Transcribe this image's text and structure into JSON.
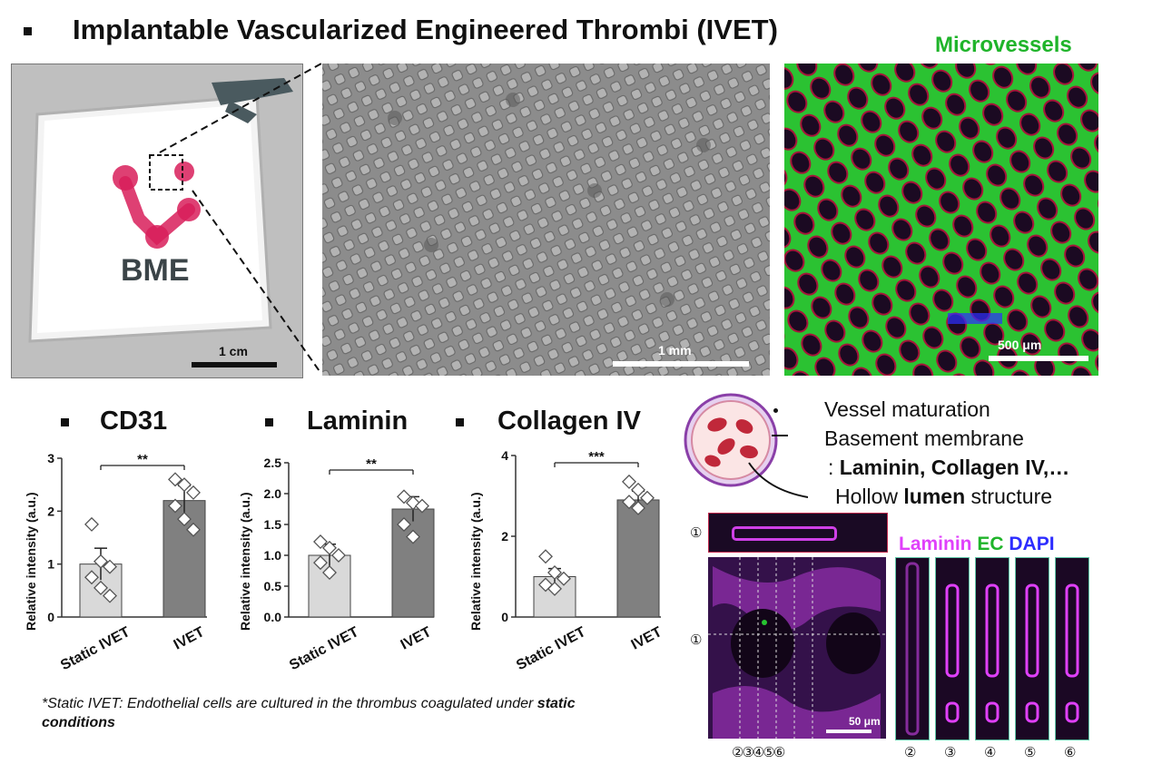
{
  "header": {
    "title": "Implantable Vascularized Engineered Thrombi (IVET)"
  },
  "photo_panel": {
    "logo_text": "BME",
    "scale_label": "1 cm"
  },
  "gray_panel": {
    "scale_label": "1 mm"
  },
  "green_panel": {
    "heading": "Microvessels",
    "scale_label": "500 μm"
  },
  "colors": {
    "bar_static": "#d9d9d9",
    "bar_ivet": "#808080",
    "green": "#27c431",
    "magenta": "#e040fb",
    "blue": "#2d2dff"
  },
  "chart_data": [
    {
      "type": "bar",
      "title": "CD31",
      "ylabel": "Relative intensity (a.u.)",
      "ylim": [
        0,
        3
      ],
      "yticks": [
        "0",
        "1",
        "2",
        "3"
      ],
      "categories": [
        "Static IVET",
        "IVET"
      ],
      "values": [
        1.0,
        2.2
      ],
      "error": [
        0.3,
        0.28
      ],
      "points": [
        [
          1.75,
          1.05,
          0.95,
          0.75,
          0.55,
          0.4
        ],
        [
          2.6,
          2.5,
          2.35,
          2.1,
          1.85,
          1.65
        ]
      ],
      "significance": "**"
    },
    {
      "type": "bar",
      "title": "Laminin",
      "ylabel": "Relative intensity (a.u.)",
      "ylim": [
        0,
        2.5
      ],
      "yticks": [
        "0.0",
        "0.5",
        "1.0",
        "1.5",
        "2.0",
        "2.5"
      ],
      "categories": [
        "Static IVET",
        "IVET"
      ],
      "values": [
        1.0,
        1.75
      ],
      "error": [
        0.18,
        0.2
      ],
      "points": [
        [
          1.22,
          1.12,
          1.0,
          0.88,
          0.72
        ],
        [
          1.95,
          1.85,
          1.8,
          1.5,
          1.3
        ]
      ],
      "significance": "**"
    },
    {
      "type": "bar",
      "title": "Collagen IV",
      "ylabel": "Relative intensity (a.u.)",
      "ylim": [
        0,
        4
      ],
      "yticks": [
        "0",
        "2",
        "4"
      ],
      "categories": [
        "Static IVET",
        "IVET"
      ],
      "values": [
        1.0,
        2.9
      ],
      "error": [
        0.2,
        0.22
      ],
      "points": [
        [
          1.5,
          1.1,
          0.95,
          0.8,
          0.7
        ],
        [
          3.35,
          3.15,
          2.95,
          2.85,
          2.7
        ]
      ],
      "significance": "***"
    }
  ],
  "footnote": {
    "text": "*Static IVET: Endothelial cells are cultured in the thrombus coagulated under ",
    "bold": "static conditions"
  },
  "maturation": {
    "line1": "Vessel maturation",
    "line2": "Basement membrane",
    "line3_prefix": ": ",
    "line3_bold": "Laminin, Collagen IV,…",
    "line4_a": "Hollow ",
    "line4_bold": "lumen",
    "line4_b": " structure"
  },
  "stain_legend": {
    "laminin": "Laminin",
    "ec": "EC",
    "dapi": "DAPI"
  },
  "confocal": {
    "scale_label": "50 μm",
    "marker_1": "①",
    "marker_2": "②",
    "bottom_numbers": [
      "②",
      "③",
      "④",
      "⑤",
      "⑥"
    ],
    "slice_numbers": [
      "②",
      "③",
      "④",
      "⑤",
      "⑥"
    ]
  }
}
